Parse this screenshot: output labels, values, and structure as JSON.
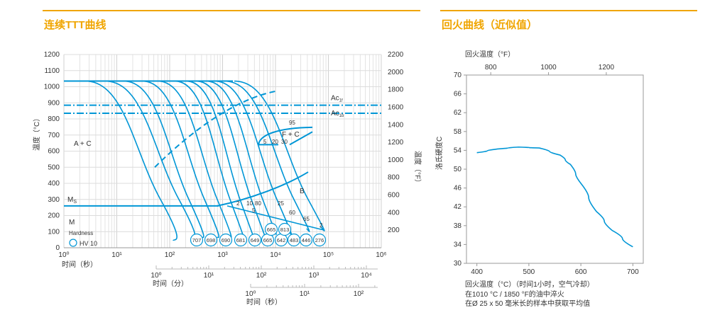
{
  "headings": {
    "ttt_title": "连续TTT曲线",
    "tempering_title": "回火曲线（近似值）"
  },
  "colors": {
    "accent": "#f0a500",
    "curve": "#0096d6",
    "grid": "#cccccc",
    "text": "#333333"
  },
  "chart_data": [
    {
      "type": "line",
      "title": "连续TTT曲线",
      "y_left": {
        "label": "温度（°C）",
        "range": [
          0,
          1200
        ],
        "ticks": [
          "0",
          "100",
          "200",
          "300",
          "400",
          "500",
          "600",
          "700",
          "800",
          "900",
          "1000",
          "1100",
          "1200"
        ]
      },
      "y_right": {
        "label": "温度（°F）",
        "range": [
          0,
          2200
        ],
        "ticks": [
          "200",
          "400",
          "600",
          "800",
          "1000",
          "1200",
          "1400",
          "1600",
          "1800",
          "2000",
          "2200"
        ]
      },
      "x_seconds": {
        "label": "时间（秒）",
        "scale": "log",
        "range": [
          1,
          1000000
        ],
        "ticks": [
          "10⁰",
          "10¹",
          "10²",
          "10³",
          "10⁴",
          "10⁵",
          "10⁶"
        ]
      },
      "x_minutes": {
        "label": "时间（分）",
        "scale": "log",
        "ticks": [
          "10⁰",
          "10¹",
          "10²",
          "10³",
          "10⁴"
        ]
      },
      "x_hours": {
        "label": "时间（秒）",
        "scale": "log",
        "ticks": [
          "10⁰",
          "10¹",
          "10²"
        ]
      },
      "ac_lines": [
        {
          "name": "Ac1f",
          "base": "Ac",
          "sub": "1f",
          "temp": 885
        },
        {
          "name": "Ac1b",
          "base": "Ac",
          "sub": "1b",
          "temp": 835
        }
      ],
      "ms": {
        "label": "M",
        "sub": "S",
        "temp": 260
      },
      "regions": [
        "A + C",
        "F + C",
        "B",
        "M"
      ],
      "percent_labels": [
        "95",
        "5",
        "20",
        "30",
        "2",
        "10",
        "80",
        "25",
        "60",
        "5",
        "65",
        "2"
      ],
      "hardness_label": "Hardness",
      "hardness_legend": "HV 10",
      "hardness_values": [
        "707",
        "698",
        "690",
        "681",
        "649",
        "665",
        "642",
        "483",
        "446",
        "276"
      ],
      "hardness_values_upper": [
        "665",
        "813"
      ]
    },
    {
      "type": "line",
      "title": "回火曲线（近似值）",
      "xlabel": "回火温度（°C）（时间1小时，空气冷却）",
      "x2label": "回火温度（°F）",
      "ylabel": "洛氏硬度C",
      "xlim": [
        380,
        720
      ],
      "ylim": [
        30,
        70
      ],
      "x_ticks": [
        "400",
        "500",
        "600",
        "700"
      ],
      "x2_ticks": [
        "800",
        "1000",
        "1200"
      ],
      "y_ticks": [
        "30",
        "34",
        "38",
        "42",
        "46",
        "50",
        "54",
        "58",
        "62",
        "66",
        "70"
      ],
      "series": [
        {
          "x": [
            400,
            440,
            480,
            520,
            560,
            580,
            600,
            630,
            660,
            700
          ],
          "y": [
            53.5,
            54.3,
            54.7,
            54.5,
            53,
            51,
            47,
            41,
            37,
            33.5
          ]
        }
      ],
      "notes": [
        "在1010 °C / 1850 °F的油中淬火",
        "在Ø 25 x 50 毫米长的样本中获取平均值"
      ]
    }
  ]
}
